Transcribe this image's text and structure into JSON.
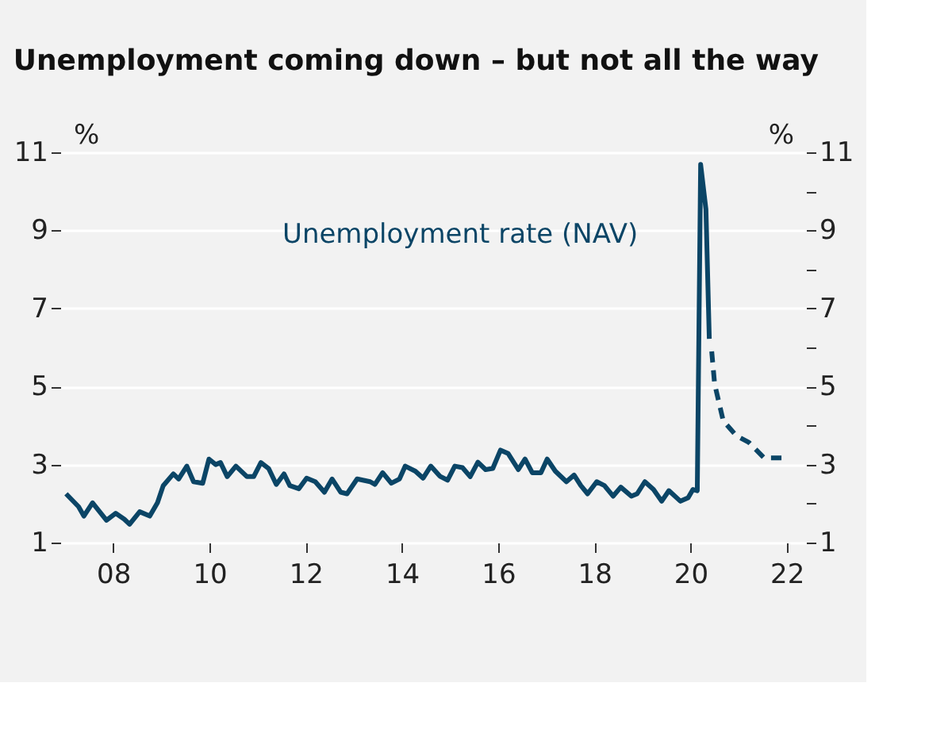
{
  "chart_data": {
    "type": "line",
    "title": "Unemployment coming down – but not all the way",
    "ylabel": "%",
    "y2label": "%",
    "xlim": [
      2006.9,
      2022.4
    ],
    "xticks": [
      {
        "value": 2008,
        "label": "08"
      },
      {
        "value": 2010,
        "label": "10"
      },
      {
        "value": 2012,
        "label": "12"
      },
      {
        "value": 2014,
        "label": "14"
      },
      {
        "value": 2016,
        "label": "16"
      },
      {
        "value": 2018,
        "label": "18"
      },
      {
        "value": 2020,
        "label": "20"
      },
      {
        "value": 2022,
        "label": "22"
      }
    ],
    "ylim": [
      1,
      11
    ],
    "yticks": [
      1,
      {
        "value": 2,
        "label": null
      },
      3,
      {
        "value": 4,
        "label": null
      },
      5,
      {
        "value": 6,
        "label": null
      },
      7,
      {
        "value": 8,
        "label": null
      },
      9,
      {
        "value": 10,
        "label": null
      },
      11
    ],
    "y2lim": [
      1,
      11
    ],
    "y2ticks": [
      1,
      {
        "value": 2,
        "label": null
      },
      3,
      {
        "value": 4,
        "label": null
      },
      5,
      {
        "value": 6,
        "label": null
      },
      7,
      {
        "value": 8,
        "label": null
      },
      9,
      {
        "value": 10,
        "label": null
      },
      11
    ],
    "grid": "y",
    "series": [
      {
        "name": "Unemployment rate (NAV)",
        "color": "#0b4566",
        "line_style": "solid",
        "x": [
          2007.02,
          2007.28,
          2007.39,
          2007.57,
          2007.86,
          2008.05,
          2008.23,
          2008.34,
          2008.55,
          2008.76,
          2008.92,
          2009.04,
          2009.25,
          2009.36,
          2009.53,
          2009.67,
          2009.86,
          2009.99,
          2010.13,
          2010.23,
          2010.37,
          2010.55,
          2010.78,
          2010.92,
          2011.07,
          2011.23,
          2011.39,
          2011.55,
          2011.67,
          2011.86,
          2012.02,
          2012.2,
          2012.39,
          2012.55,
          2012.73,
          2012.86,
          2013.07,
          2013.34,
          2013.44,
          2013.6,
          2013.78,
          2013.95,
          2014.07,
          2014.28,
          2014.44,
          2014.6,
          2014.79,
          2014.95,
          2015.1,
          2015.26,
          2015.42,
          2015.58,
          2015.74,
          2015.89,
          2016.05,
          2016.21,
          2016.42,
          2016.56,
          2016.71,
          2016.89,
          2017.02,
          2017.19,
          2017.42,
          2017.58,
          2017.72,
          2017.86,
          2018.05,
          2018.21,
          2018.39,
          2018.55,
          2018.77,
          2018.89,
          2019.05,
          2019.23,
          2019.4,
          2019.55,
          2019.79,
          2019.95,
          2020.05,
          2020.14,
          2020.21,
          2020.32,
          2020.39
        ],
        "values": [
          2.25,
          1.92,
          1.68,
          2.02,
          1.57,
          1.75,
          1.6,
          1.47,
          1.79,
          1.68,
          2.02,
          2.46,
          2.76,
          2.63,
          2.96,
          2.56,
          2.52,
          3.14,
          3.0,
          3.05,
          2.69,
          2.96,
          2.69,
          2.69,
          3.05,
          2.9,
          2.49,
          2.76,
          2.46,
          2.38,
          2.65,
          2.56,
          2.29,
          2.63,
          2.29,
          2.25,
          2.63,
          2.56,
          2.49,
          2.79,
          2.52,
          2.63,
          2.96,
          2.83,
          2.65,
          2.96,
          2.7,
          2.6,
          2.96,
          2.92,
          2.69,
          3.06,
          2.87,
          2.9,
          3.37,
          3.28,
          2.87,
          3.14,
          2.79,
          2.79,
          3.14,
          2.83,
          2.56,
          2.73,
          2.46,
          2.25,
          2.56,
          2.46,
          2.19,
          2.42,
          2.19,
          2.25,
          2.56,
          2.36,
          2.06,
          2.33,
          2.06,
          2.15,
          2.36,
          2.33,
          10.69,
          9.54,
          6.22
        ]
      },
      {
        "color": "#0b4566",
        "line_style": "dashed",
        "x": [
          2020.44,
          2020.5,
          2020.68,
          2020.95,
          2021.21,
          2021.53,
          2021.89
        ],
        "values": [
          5.9,
          5.07,
          4.12,
          3.74,
          3.57,
          3.17,
          3.17
        ]
      }
    ]
  }
}
